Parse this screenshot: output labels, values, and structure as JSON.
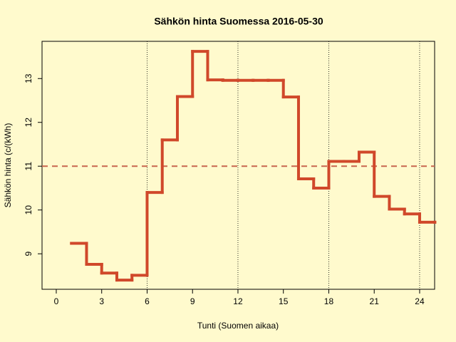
{
  "chart_data": {
    "type": "line",
    "step": "post",
    "title": "Sähkön hinta Suomessa 2016-05-30",
    "x_label": "Tunti (Suomen aikaa)",
    "y_label": "Sähkön hinta (c/(kWh)",
    "x": [
      1,
      2,
      3,
      4,
      5,
      6,
      7,
      8,
      9,
      10,
      11,
      12,
      13,
      14,
      15,
      16,
      17,
      18,
      19,
      20,
      21,
      22,
      23,
      24,
      25
    ],
    "values": [
      9.24,
      8.76,
      8.56,
      8.4,
      8.51,
      10.4,
      11.6,
      12.59,
      13.62,
      12.97,
      12.96,
      12.96,
      12.96,
      12.96,
      12.58,
      10.71,
      10.5,
      11.11,
      11.11,
      11.32,
      10.31,
      10.02,
      9.91,
      9.72,
      9.72
    ],
    "color": "#d0482a",
    "mean_line": 11,
    "mean_color": "#c8664e",
    "vlines": [
      6,
      12,
      18,
      24
    ],
    "xlim": [
      -0.94,
      24.99
    ],
    "ylim": [
      8.19,
      13.85
    ],
    "xticks": [
      0,
      3,
      6,
      9,
      12,
      15,
      18,
      21,
      24
    ],
    "yticks": [
      9,
      10,
      11,
      12,
      13
    ]
  }
}
